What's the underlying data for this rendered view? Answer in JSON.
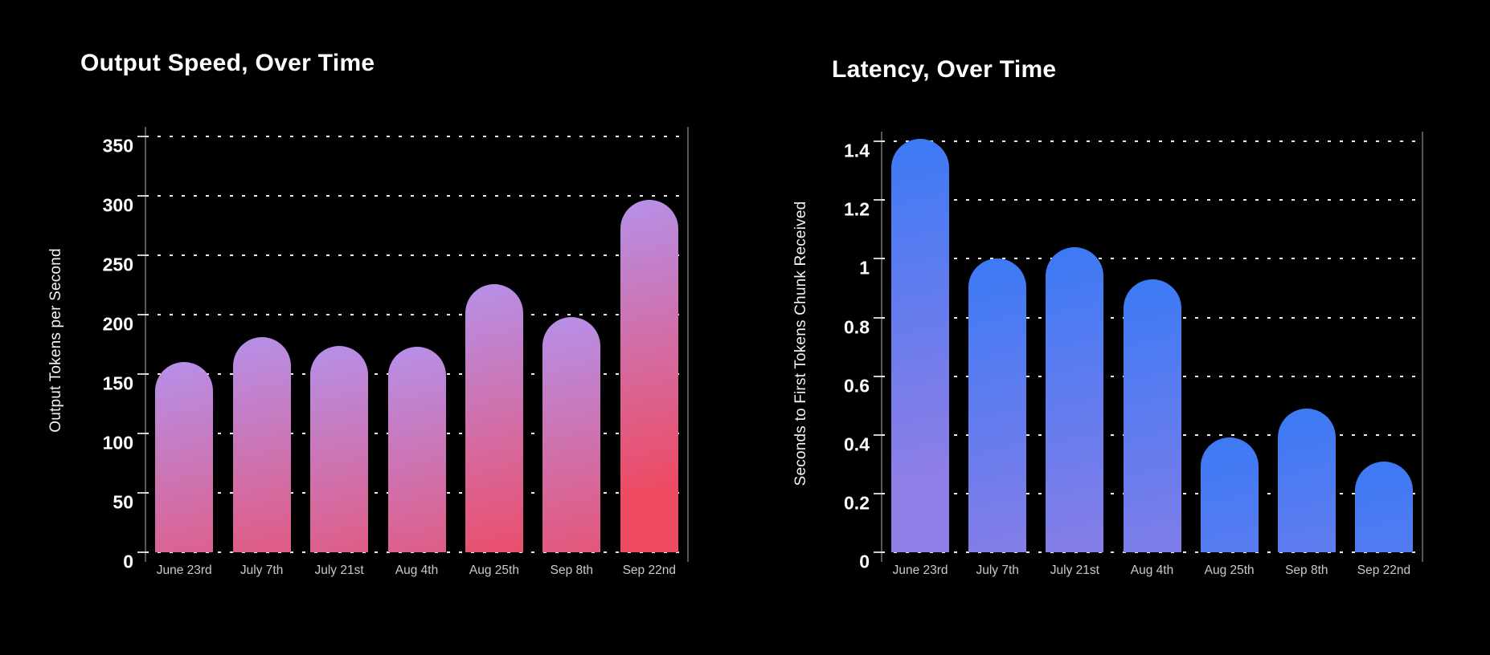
{
  "page": {
    "background_color": "#000000",
    "text_color": "#ffffff",
    "muted_text_color": "#c7cacd"
  },
  "chart_data": [
    {
      "type": "bar",
      "title": "Output Speed, Over Time",
      "ylabel": "Output Tokens per Second",
      "xlabel": "",
      "categories": [
        "June 23rd",
        "July 7th",
        "July 21st",
        "Aug 4th",
        "Aug 25th",
        "Sep 8th",
        "Sep 22nd"
      ],
      "values": [
        160,
        181,
        174,
        173,
        226,
        198,
        297
      ],
      "yticks": [
        0,
        50,
        100,
        150,
        200,
        250,
        300,
        350
      ],
      "ylim": [
        0,
        350
      ],
      "grid": "dotted-horizontal",
      "legend": "none",
      "bar_gradient_top": "#b690e9",
      "bar_gradient_bottom": "#ee4a62"
    },
    {
      "type": "bar",
      "title": "Latency, Over Time",
      "ylabel": "Seconds to First Tokens Chunk Received",
      "xlabel": "",
      "categories": [
        "June 23rd",
        "July 7th",
        "July 21st",
        "Aug 4th",
        "Aug 25th",
        "Sep 8th",
        "Sep 22nd"
      ],
      "values": [
        1.41,
        1.0,
        1.04,
        0.93,
        0.39,
        0.49,
        0.31
      ],
      "yticks": [
        0,
        0.2,
        0.4,
        0.6,
        0.8,
        1,
        1.2,
        1.4
      ],
      "ylim": [
        0,
        1.4
      ],
      "grid": "dotted-horizontal",
      "legend": "none",
      "bar_gradient_top": "#3b7af5",
      "bar_gradient_bottom": "#8f7ee6"
    }
  ]
}
